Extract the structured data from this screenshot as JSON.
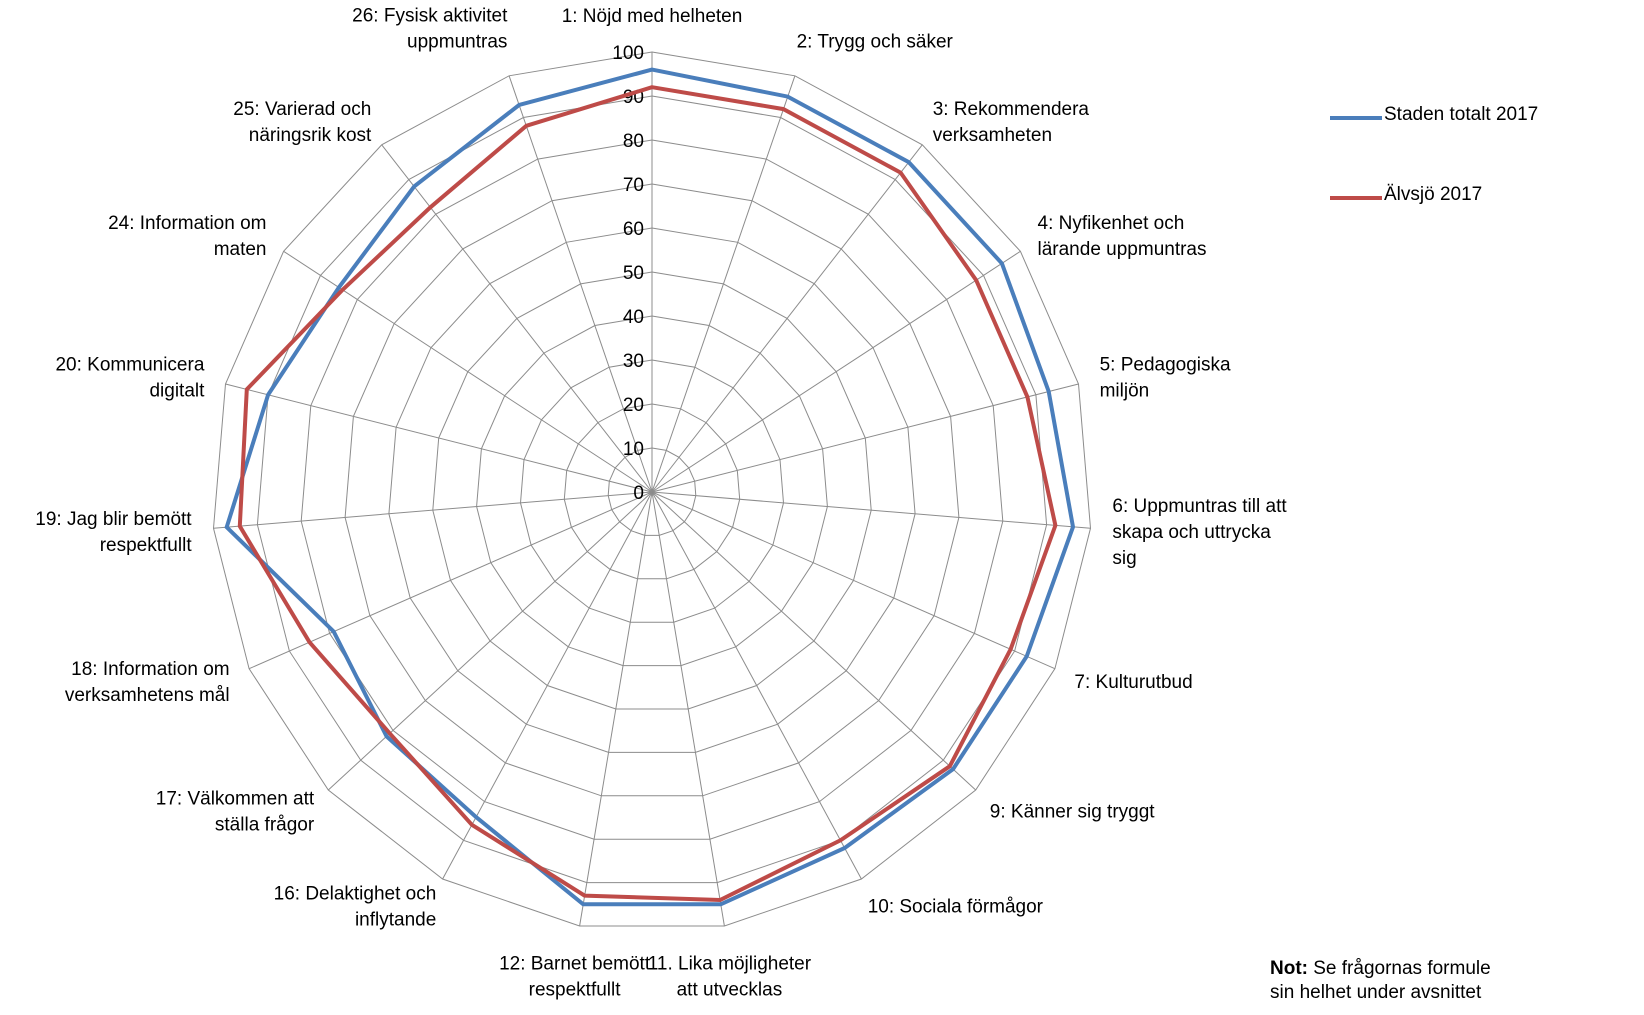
{
  "chart_data": {
    "type": "radar",
    "title": "",
    "rlim": [
      0,
      100
    ],
    "ticks": [
      0,
      10,
      20,
      30,
      40,
      50,
      60,
      70,
      80,
      90,
      100
    ],
    "categories": [
      "1: Nöjd med helheten",
      "2: Trygg och säker",
      "3: Rekommendera\nverksamheten",
      "4: Nyfikenhet och\nlärande uppmuntras",
      "5: Pedagogiska\nmiljön",
      "6: Uppmuntras till att\nskapa och uttrycka\nsig",
      "7: Kulturutbud",
      "9: Känner sig tryggt",
      "10: Sociala förmågor",
      "11. Lika möjligheter\natt utvecklas",
      "12: Barnet bemött\nrespektfullt",
      "16: Delaktighet och\ninflytande",
      "17: Välkommen att\nställa frågor",
      "18: Information om\nverksamhetens mål",
      "19: Jag blir bemött\nrespektfullt",
      "20: Kommunicera\ndigitalt",
      "24: Information om\nmaten",
      "25: Varierad och\nnäringsrik kost",
      "26: Fysisk aktivitet\nuppmuntras"
    ],
    "series": [
      {
        "name": "Staden totalt 2017",
        "color": "#4a7ebb",
        "values": [
          96,
          95,
          95,
          95,
          93,
          96,
          93,
          93,
          92,
          95,
          95,
          84,
          82,
          79,
          97,
          90,
          85,
          88,
          93
        ]
      },
      {
        "name": "Älvsjö 2017",
        "color": "#be4b48",
        "values": [
          92,
          92,
          92,
          88,
          88,
          92,
          89,
          92,
          90,
          94,
          93,
          86,
          81,
          85,
          94,
          95,
          84,
          82,
          88
        ]
      }
    ],
    "grid": true,
    "legend_position": "right"
  },
  "note": {
    "bold": "Not:",
    "line1": " Se frågornas formule",
    "line2": "sin helhet under avsnittet"
  }
}
